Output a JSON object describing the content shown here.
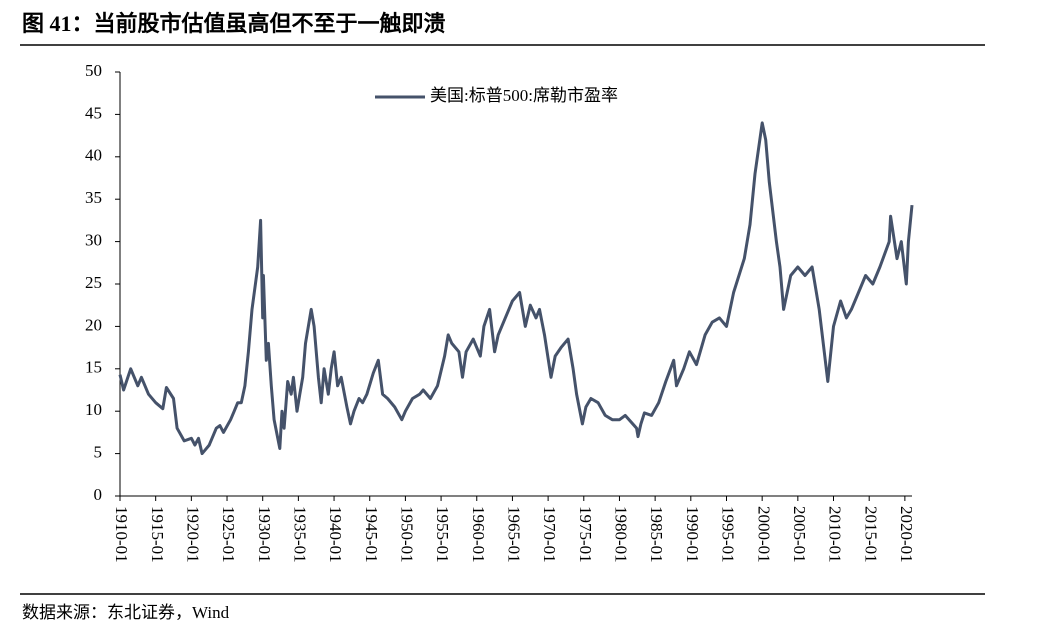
{
  "chart_data": {
    "type": "line",
    "title": "图 41：当前股市估值虽高但不至于一触即溃",
    "source": "数据来源：东北证券，Wind",
    "series": [
      {
        "name": "美国:标普500:席勒市盈率",
        "color": "#45526a",
        "x": [
          1910,
          1910.5,
          1911.5,
          1912.5,
          1913,
          1914,
          1915,
          1916,
          1916.5,
          1917.5,
          1918,
          1919,
          1920,
          1920.5,
          1921,
          1921.5,
          1922,
          1922.5,
          1923.5,
          1924,
          1924.5,
          1925.5,
          1926,
          1926.5,
          1927,
          1927.5,
          1928,
          1928.5,
          1929.3,
          1929.7,
          1930,
          1930.1,
          1930.5,
          1930.8,
          1931.2,
          1931.6,
          1932.4,
          1932.7,
          1933,
          1933.5,
          1934,
          1934.3,
          1934.8,
          1935.2,
          1935.6,
          1936,
          1936.8,
          1937.2,
          1937.8,
          1938.2,
          1938.6,
          1939.2,
          1939.6,
          1940,
          1940.5,
          1941,
          1941.8,
          1942.3,
          1942.8,
          1943.5,
          1944,
          1944.6,
          1945.5,
          1946.2,
          1946.8,
          1947.5,
          1948.5,
          1949.5,
          1950,
          1951,
          1952,
          1952.5,
          1953.5,
          1954.5,
          1955.5,
          1956,
          1956.5,
          1957.5,
          1958,
          1958.5,
          1959.5,
          1960.5,
          1961,
          1961.8,
          1962.5,
          1963,
          1964,
          1965,
          1966,
          1966.8,
          1967.5,
          1968.3,
          1968.8,
          1969.5,
          1970.4,
          1971,
          1971.8,
          1972.8,
          1973.5,
          1974,
          1974.8,
          1975.3,
          1976,
          1977,
          1978,
          1979,
          1980,
          1980.8,
          1982.4,
          1982.6,
          1983,
          1983.5,
          1984.5,
          1985.5,
          1986.5,
          1987.6,
          1988,
          1989,
          1989.8,
          1990.8,
          1992,
          1993,
          1994,
          1995,
          1996,
          1997.5,
          1998.3,
          1999,
          2000,
          2000.5,
          2001,
          2002,
          2002.5,
          2003,
          2004,
          2005,
          2006,
          2007,
          2008,
          2009.2,
          2010,
          2011,
          2011.8,
          2012.5,
          2013.5,
          2014.5,
          2015.5,
          2016.5,
          2017.8,
          2018,
          2018.9,
          2019.5,
          2020.2,
          2020.5,
          2021
        ],
        "values": [
          14.3,
          12.5,
          15,
          13,
          14,
          12,
          11,
          10.3,
          12.8,
          11.5,
          8,
          6.5,
          6.8,
          6,
          6.8,
          5,
          5.5,
          6,
          8,
          8.3,
          7.5,
          9,
          10,
          11,
          11,
          13,
          17,
          22,
          27,
          32.5,
          21,
          26,
          16,
          18,
          13,
          9,
          5.6,
          10,
          8,
          13.5,
          12,
          14,
          10,
          12,
          14,
          18,
          22,
          20,
          14,
          11,
          15,
          12,
          15,
          17,
          13,
          14,
          10.5,
          8.5,
          10,
          11.5,
          11,
          12,
          14.5,
          16,
          12,
          11.5,
          10.5,
          9,
          10,
          11.5,
          12,
          12.5,
          11.5,
          13,
          16.5,
          19,
          18,
          17,
          14,
          17,
          18.5,
          16.5,
          20,
          22,
          17,
          19,
          21,
          23,
          24,
          20,
          22.5,
          21,
          22,
          19,
          14,
          16.5,
          17.5,
          18.5,
          15,
          12,
          8.5,
          10.5,
          11.5,
          11,
          9.5,
          9,
          9,
          9.5,
          8,
          7,
          8.5,
          9.8,
          9.5,
          11,
          13.5,
          16,
          13,
          15,
          17,
          15.5,
          19,
          20.5,
          21,
          20,
          24,
          28,
          32,
          38,
          44,
          42,
          37,
          30,
          27,
          22,
          26,
          27,
          26,
          27,
          22,
          13.5,
          20,
          23,
          21,
          22,
          24,
          26,
          25,
          27,
          30,
          33,
          28,
          30,
          25,
          30,
          34.3
        ]
      }
    ],
    "xlim": [
      1910,
      2021
    ],
    "xticks": [
      {
        "value": 1910,
        "label": "1910-01"
      },
      {
        "value": 1915,
        "label": "1915-01"
      },
      {
        "value": 1920,
        "label": "1920-01"
      },
      {
        "value": 1925,
        "label": "1925-01"
      },
      {
        "value": 1930,
        "label": "1930-01"
      },
      {
        "value": 1935,
        "label": "1935-01"
      },
      {
        "value": 1940,
        "label": "1940-01"
      },
      {
        "value": 1945,
        "label": "1945-01"
      },
      {
        "value": 1950,
        "label": "1950-01"
      },
      {
        "value": 1955,
        "label": "1955-01"
      },
      {
        "value": 1960,
        "label": "1960-01"
      },
      {
        "value": 1965,
        "label": "1965-01"
      },
      {
        "value": 1970,
        "label": "1970-01"
      },
      {
        "value": 1975,
        "label": "1975-01"
      },
      {
        "value": 1980,
        "label": "1980-01"
      },
      {
        "value": 1985,
        "label": "1985-01"
      },
      {
        "value": 1990,
        "label": "1990-01"
      },
      {
        "value": 1995,
        "label": "1995-01"
      },
      {
        "value": 2000,
        "label": "2000-01"
      },
      {
        "value": 2005,
        "label": "2005-01"
      },
      {
        "value": 2010,
        "label": "2010-01"
      },
      {
        "value": 2015,
        "label": "2015-01"
      },
      {
        "value": 2020,
        "label": "2020-01"
      }
    ],
    "ylim": [
      0,
      50
    ],
    "yticks": [
      0,
      5,
      10,
      15,
      20,
      25,
      30,
      35,
      40,
      45,
      50
    ],
    "grid": false
  }
}
